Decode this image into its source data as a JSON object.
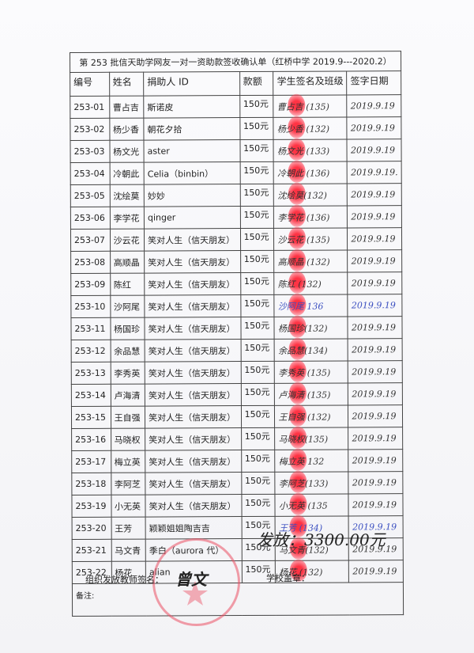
{
  "title": "第 253 批信天助学网友一对一资助款签收确认单（红桥中学 2019.9---2020.2）",
  "headers": [
    "编号",
    "姓名",
    "捐助人 ID",
    "款额",
    "学生签名及班级",
    "签字日期"
  ],
  "rows": [
    {
      "id": "253-01",
      "name": "曹占吉",
      "donor": "斯诺皮",
      "amount": "150元",
      "signature": "曹占吉 (135)",
      "date": "2019.9.19"
    },
    {
      "id": "253-02",
      "name": "杨少香",
      "donor": "朝花夕拾",
      "amount": "150元",
      "signature": "杨少香 (132)",
      "date": "2019.9.19"
    },
    {
      "id": "253-03",
      "name": "杨文光",
      "donor": "aster",
      "amount": "150元",
      "signature": "杨文光 (133)",
      "date": "2019.9.19"
    },
    {
      "id": "253-04",
      "name": "冷朝此",
      "donor": "Celia（binbin）",
      "amount": "150元",
      "signature": "冷朝此 (136)",
      "date": "2019.9.19."
    },
    {
      "id": "253-05",
      "name": "沈绘莫",
      "donor": "妙妙",
      "amount": "150元",
      "signature": "沈绘莫(132)",
      "date": "2019.9.19"
    },
    {
      "id": "253-06",
      "name": "李学花",
      "donor": "qinger",
      "amount": "150元",
      "signature": "李学花 (136)",
      "date": "2019.9.19"
    },
    {
      "id": "253-07",
      "name": "沙云花",
      "donor": "笑对人生（信天朋友）",
      "amount": "150元",
      "signature": "沙云花 (135)",
      "date": "2019.9.19"
    },
    {
      "id": "253-08",
      "name": "高顺晶",
      "donor": "笑对人生（信天朋友）",
      "amount": "150元",
      "signature": "高顺晶 (132)",
      "date": "2019.9.19"
    },
    {
      "id": "253-09",
      "name": "陈红",
      "donor": "笑对人生（信天朋友）",
      "amount": "150元",
      "signature": "陈红 (132)",
      "date": "2019.9.19"
    },
    {
      "id": "253-10",
      "name": "沙阿尾",
      "donor": "笑对人生（信天朋友）",
      "amount": "150元",
      "signature": "沙阿尾 136",
      "date": "2019.9.19",
      "ink": "blue"
    },
    {
      "id": "253-11",
      "name": "杨国珍",
      "donor": "笑对人生（信天朋友）",
      "amount": "150元",
      "signature": "杨国珍(132)",
      "date": "2019.9.19"
    },
    {
      "id": "253-12",
      "name": "余品慧",
      "donor": "笑对人生（信天朋友）",
      "amount": "150元",
      "signature": "余品慧(134)",
      "date": "2019.9.19"
    },
    {
      "id": "253-13",
      "name": "李秀英",
      "donor": "笑对人生（信天朋友）",
      "amount": "150元",
      "signature": "李秀英 (135)",
      "date": "2019.9.19"
    },
    {
      "id": "253-14",
      "name": "卢海清",
      "donor": "笑对人生（信天朋友）",
      "amount": "150元",
      "signature": "卢海清 (135)",
      "date": "2019.9.19"
    },
    {
      "id": "253-15",
      "name": "王自强",
      "donor": "笑对人生（信天朋友）",
      "amount": "150元",
      "signature": "王自强 (132)",
      "date": "2019.9.19"
    },
    {
      "id": "253-16",
      "name": "马晓权",
      "donor": "笑对人生（信天朋友）",
      "amount": "150元",
      "signature": "马晓权(135)",
      "date": "2019.9.19"
    },
    {
      "id": "253-17",
      "name": "梅立英",
      "donor": "笑对人生（信天朋友）",
      "amount": "150元",
      "signature": "梅立英 132",
      "date": "2019.9.19"
    },
    {
      "id": "253-18",
      "name": "李阿芝",
      "donor": "笑对人生（信天朋友）",
      "amount": "150元",
      "signature": "李阿芝(133)",
      "date": "2019.9.19"
    },
    {
      "id": "253-19",
      "name": "小无英",
      "donor": "笑对人生（信天朋友）",
      "amount": "150元",
      "signature": "小无英 (135",
      "date": "2019.9.19"
    },
    {
      "id": "253-20",
      "name": "王芳",
      "donor": "颖颖姐姐陶吉吉",
      "amount": "150元",
      "signature": "王芳 (134)",
      "date": "2019.9.19",
      "ink": "blue"
    },
    {
      "id": "253-21",
      "name": "马文青",
      "donor": "季白（aurora 代）",
      "amount": "150元",
      "signature": "马文青(132)",
      "date": "2019.9.19"
    },
    {
      "id": "253-22",
      "name": "杨花",
      "donor": "alian",
      "amount": "150元",
      "signature": "杨花 (132)",
      "date": "2019.9.19"
    }
  ],
  "remarks_label": "备注:",
  "remarks_value": "发放：3300.00元",
  "footer": {
    "teacher_label": "组织发放教师签名：",
    "teacher_signature": "曾文",
    "school_stamp_label": "学校盖章："
  },
  "colors": {
    "fingerprint": "#ff3344",
    "seal": "#eb5064",
    "blue_ink": "#3a4ec0"
  }
}
